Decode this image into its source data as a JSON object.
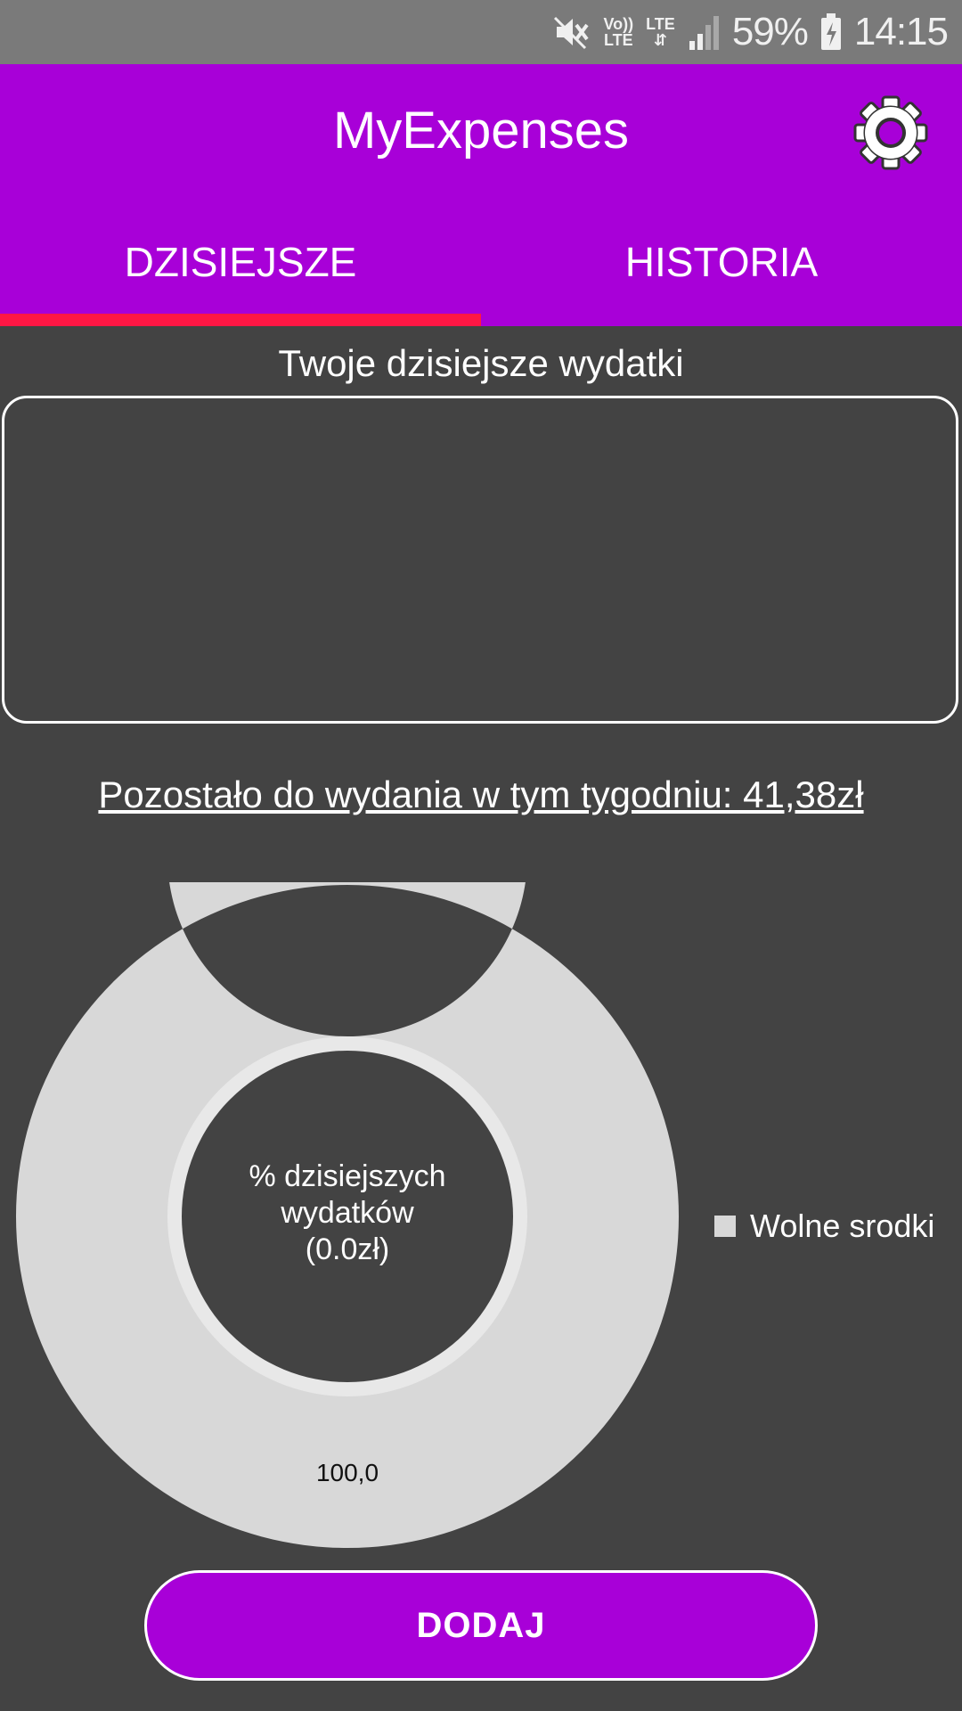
{
  "status_bar": {
    "volte_top": "Vo))",
    "volte_bottom": "LTE",
    "lte_label": "LTE",
    "battery": "59%",
    "time": "14:15",
    "icons": [
      "mute-icon",
      "volte-icon",
      "lte-data-icon",
      "signal-icon",
      "battery-charging-icon"
    ]
  },
  "app_bar": {
    "title": "MyExpenses",
    "settings_icon": "gear-icon",
    "color": "#a800d8"
  },
  "tabs": [
    {
      "label": "DZISIEJSZE",
      "active": true
    },
    {
      "label": "HISTORIA",
      "active": false
    }
  ],
  "tab_indicator_color": "#ff1744",
  "main": {
    "section_title": "Twoje dzisiejsze wydatki",
    "expenses_list": [],
    "remaining_label": "Pozostało do wydania w tym tygodniu:  41,38zł",
    "add_button_label": "DODAJ"
  },
  "chart_data": {
    "type": "pie",
    "variant": "donut",
    "center_text": "% dzisiejszych wydatków (0.0zł)",
    "center_lines": [
      "% dzisiejszych",
      "wydatków",
      "(0.0zł)"
    ],
    "slices": [
      {
        "label": "Wolne srodki",
        "value": 100.0,
        "display_value": "100,0",
        "color": "#d8d8d8"
      }
    ],
    "legend": {
      "position": "right",
      "entries": [
        "Wolne srodki"
      ]
    }
  }
}
